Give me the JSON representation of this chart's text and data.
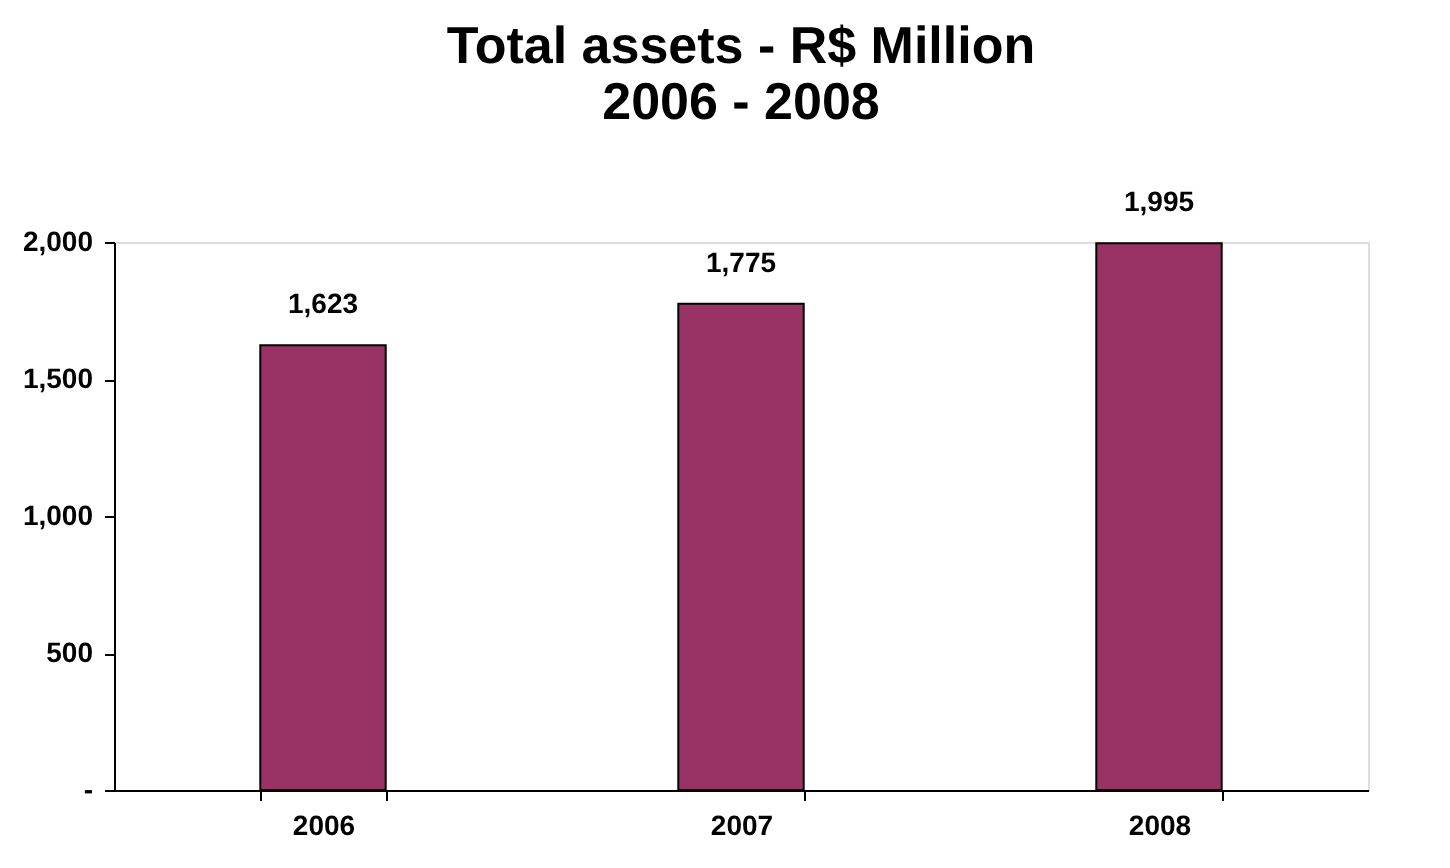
{
  "chart_data": {
    "type": "bar",
    "title": [
      "Total assets - R$ Million",
      "2006 - 2008"
    ],
    "categories": [
      "2006",
      "2007",
      "2008"
    ],
    "values": [
      1623,
      1775,
      1995
    ],
    "value_labels": [
      "1,623",
      "1,775",
      "1,995"
    ],
    "color": "#993366",
    "ylim": [
      0,
      2000
    ],
    "yticks": [
      {
        "value": 0,
        "label": "-"
      },
      {
        "value": 500,
        "label": "500"
      },
      {
        "value": 1000,
        "label": "1,000"
      },
      {
        "value": 1500,
        "label": "1,500"
      },
      {
        "value": 2000,
        "label": "2,000"
      }
    ],
    "grid": false
  }
}
